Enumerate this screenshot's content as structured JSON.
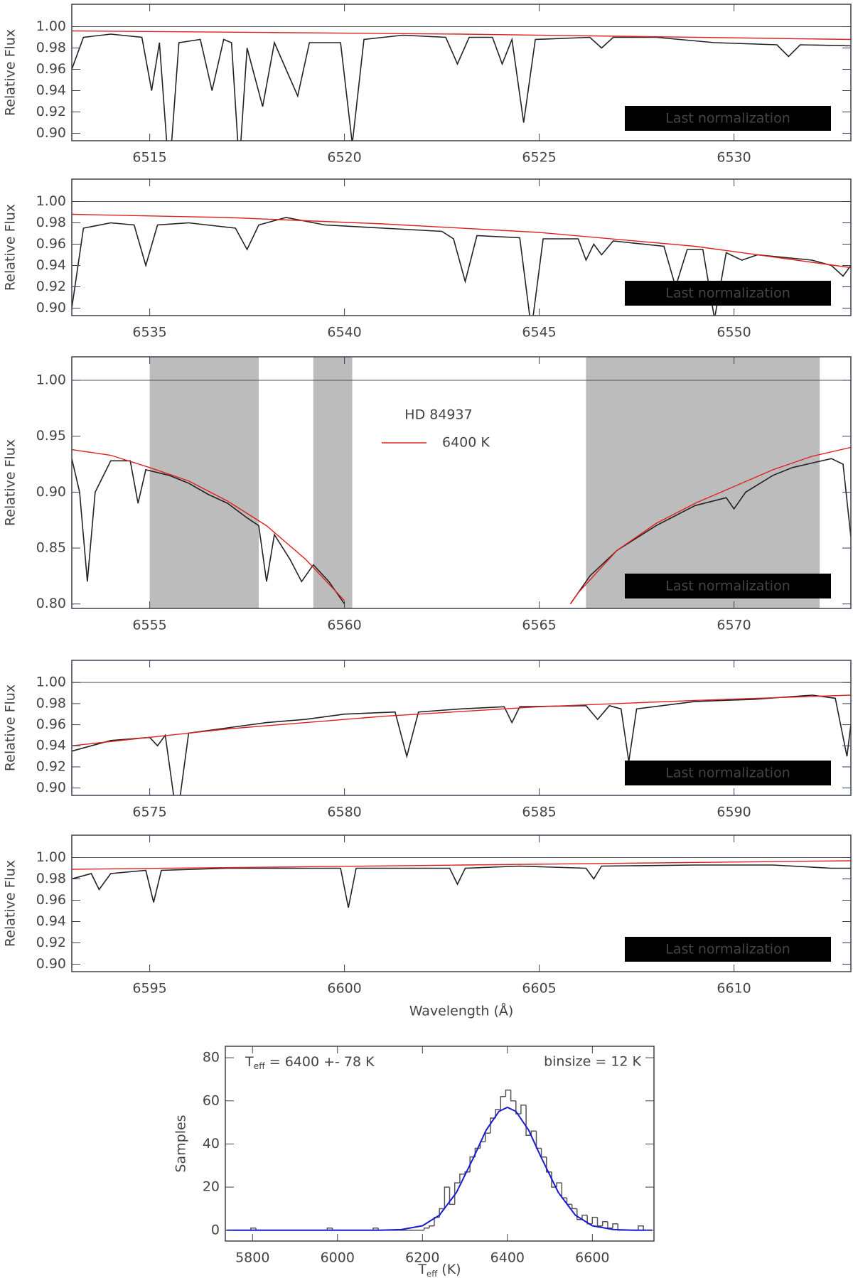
{
  "chart_data": [
    {
      "type": "line",
      "xlim": [
        6513,
        6533
      ],
      "ylim": [
        0.893,
        1.021
      ],
      "xticks": [
        6515,
        6520,
        6525,
        6530
      ],
      "yticks": [
        {
          "value": 0.9,
          "label": "0.90"
        },
        0.92,
        0.94,
        0.96,
        0.98,
        {
          "value": 1.0,
          "label": "1.00"
        }
      ],
      "ylabel": "Relative Flux",
      "hline": 1.0,
      "annotation": "Last normalization",
      "series": [
        {
          "color": "#222222",
          "x": [
            6513,
            6513.3,
            6514,
            6514.8,
            6515.05,
            6515.25,
            6515.5,
            6515.75,
            6516.3,
            6516.6,
            6516.9,
            6517.1,
            6517.3,
            6517.5,
            6517.9,
            6518.2,
            6518.8,
            6519.1,
            6519.9,
            6520.2,
            6520.5,
            6521.5,
            6522.6,
            6522.9,
            6523.2,
            6523.8,
            6524.05,
            6524.3,
            6524.6,
            6524.9,
            6526.3,
            6526.6,
            6526.9,
            6528,
            6529.5,
            6531.1,
            6531.4,
            6531.7,
            6533
          ],
          "values": [
            0.96,
            0.99,
            0.993,
            0.99,
            0.94,
            0.985,
            0.86,
            0.985,
            0.988,
            0.94,
            0.988,
            0.985,
            0.87,
            0.98,
            0.925,
            0.985,
            0.935,
            0.985,
            0.985,
            0.89,
            0.988,
            0.992,
            0.99,
            0.965,
            0.99,
            0.99,
            0.965,
            0.988,
            0.91,
            0.988,
            0.99,
            0.98,
            0.99,
            0.99,
            0.985,
            0.983,
            0.972,
            0.983,
            0.982
          ]
        },
        {
          "color": "#e02020",
          "x": [
            6513,
            6518,
            6523,
            6528,
            6533
          ],
          "values": [
            0.996,
            0.9945,
            0.993,
            0.9905,
            0.988
          ]
        }
      ]
    },
    {
      "type": "line",
      "xlim": [
        6533,
        6553
      ],
      "ylim": [
        0.893,
        1.021
      ],
      "xticks": [
        6535,
        6540,
        6545,
        6550
      ],
      "yticks": [
        {
          "value": 0.9,
          "label": "0.90"
        },
        0.92,
        0.94,
        0.96,
        0.98,
        {
          "value": 1.0,
          "label": "1.00"
        }
      ],
      "ylabel": "Relative Flux",
      "hline": 1.0,
      "annotation": "Last normalization",
      "series": [
        {
          "color": "#222222",
          "x": [
            6533,
            6533.3,
            6534,
            6534.6,
            6534.9,
            6535.2,
            6536,
            6537.2,
            6537.5,
            6537.8,
            6538.5,
            6539.5,
            6541,
            6542.5,
            6542.8,
            6543.1,
            6543.4,
            6544.5,
            6544.8,
            6545.1,
            6546,
            6546.2,
            6546.4,
            6546.6,
            6546.9,
            6548.2,
            6548.5,
            6548.8,
            6549.2,
            6549.5,
            6549.8,
            6550.2,
            6550.6,
            6552,
            6552.5,
            6552.8,
            6553
          ],
          "values": [
            0.9,
            0.975,
            0.98,
            0.978,
            0.94,
            0.978,
            0.98,
            0.975,
            0.955,
            0.978,
            0.985,
            0.978,
            0.975,
            0.972,
            0.965,
            0.925,
            0.968,
            0.966,
            0.88,
            0.965,
            0.965,
            0.945,
            0.96,
            0.95,
            0.963,
            0.958,
            0.92,
            0.955,
            0.955,
            0.89,
            0.952,
            0.945,
            0.95,
            0.945,
            0.94,
            0.93,
            0.94
          ]
        },
        {
          "color": "#e02020",
          "x": [
            6533,
            6537,
            6541,
            6545,
            6549,
            6553
          ],
          "values": [
            0.988,
            0.985,
            0.979,
            0.971,
            0.958,
            0.938
          ]
        }
      ]
    },
    {
      "type": "line",
      "xlim": [
        6553,
        6573
      ],
      "ylim": [
        0.796,
        1.021
      ],
      "xticks": [
        6555,
        6560,
        6565,
        6570
      ],
      "yticks": [
        {
          "value": 0.8,
          "label": "0.80"
        },
        0.85,
        {
          "value": 0.9,
          "label": "0.90"
        },
        0.95,
        {
          "value": 1.0,
          "label": "1.00"
        }
      ],
      "ylabel": "Relative Flux",
      "hline": 1.0,
      "annotation": "Last normalization",
      "title": "HD 84937",
      "shaded_regions": [
        [
          6555,
          6557.8
        ],
        [
          6559.2,
          6560.2
        ],
        [
          6566.2,
          6572.2
        ]
      ],
      "series": [
        {
          "color": "#222222",
          "x": [
            6553,
            6553.2,
            6553.4,
            6553.6,
            6554,
            6554.5,
            6554.7,
            6554.9,
            6555.5,
            6556,
            6556.5,
            6557,
            6557.5,
            6557.8,
            6558,
            6558.2,
            6558.6,
            6558.9,
            6559.2,
            6559.6,
            6560,
            6563,
            6565.8,
            6566.3,
            6567,
            6568,
            6569,
            6569.8,
            6570,
            6570.3,
            6571,
            6571.5,
            6572,
            6572.5,
            6572.8,
            6573
          ],
          "values": [
            0.93,
            0.9,
            0.82,
            0.9,
            0.928,
            0.928,
            0.89,
            0.92,
            0.915,
            0.908,
            0.898,
            0.89,
            0.877,
            0.87,
            0.82,
            0.862,
            0.84,
            0.82,
            0.835,
            0.82,
            0.8,
            null,
            0.8,
            0.825,
            0.848,
            0.87,
            0.888,
            0.895,
            0.885,
            0.9,
            0.915,
            0.922,
            0.926,
            0.93,
            0.925,
            0.86
          ]
        },
        {
          "name": "6400 K",
          "color": "#e02020",
          "x": [
            6553,
            6554,
            6555,
            6556,
            6557,
            6558,
            6559,
            6560,
            6563,
            6565.8,
            6566,
            6567,
            6568,
            6569,
            6570,
            6571,
            6572,
            6573
          ],
          "values": [
            0.938,
            0.933,
            0.922,
            0.91,
            0.892,
            0.87,
            0.84,
            0.803,
            null,
            0.8,
            0.81,
            0.848,
            0.872,
            0.89,
            0.905,
            0.92,
            0.932,
            0.94
          ]
        }
      ]
    },
    {
      "type": "line",
      "xlim": [
        6573,
        6593
      ],
      "ylim": [
        0.893,
        1.021
      ],
      "xticks": [
        6575,
        6580,
        6585,
        6590
      ],
      "yticks": [
        {
          "value": 0.9,
          "label": "0.90"
        },
        0.92,
        0.94,
        0.96,
        0.98,
        {
          "value": 1.0,
          "label": "1.00"
        }
      ],
      "ylabel": "Relative Flux",
      "hline": 1.0,
      "annotation": "Last normalization",
      "series": [
        {
          "color": "#222222",
          "x": [
            6573,
            6574,
            6575,
            6575.2,
            6575.4,
            6575.7,
            6576,
            6577,
            6578,
            6579,
            6580,
            6581.3,
            6581.6,
            6581.9,
            6583,
            6584.1,
            6584.3,
            6584.5,
            6586.2,
            6586.5,
            6586.8,
            6587.1,
            6587.3,
            6587.5,
            6589,
            6590.5,
            6592,
            6592.6,
            6592.9,
            6593
          ],
          "values": [
            0.935,
            0.945,
            0.948,
            0.94,
            0.95,
            0.87,
            0.952,
            0.957,
            0.962,
            0.965,
            0.97,
            0.972,
            0.93,
            0.972,
            0.975,
            0.977,
            0.962,
            0.977,
            0.978,
            0.965,
            0.978,
            0.975,
            0.925,
            0.975,
            0.982,
            0.984,
            0.988,
            0.985,
            0.93,
            0.96
          ]
        },
        {
          "color": "#e02020",
          "x": [
            6573,
            6577,
            6581,
            6585,
            6589,
            6593
          ],
          "values": [
            0.94,
            0.956,
            0.968,
            0.977,
            0.983,
            0.988
          ]
        }
      ]
    },
    {
      "type": "line",
      "xlim": [
        6593,
        6613
      ],
      "ylim": [
        0.893,
        1.021
      ],
      "xticks": [
        6595,
        6600,
        6605,
        6610
      ],
      "yticks": [
        {
          "value": 0.9,
          "label": "0.90"
        },
        0.92,
        0.94,
        0.96,
        0.98,
        {
          "value": 1.0,
          "label": "1.00"
        }
      ],
      "ylabel": "Relative Flux",
      "xlabel": "Wavelength (Å)",
      "hline": 1.0,
      "annotation": "Last normalization",
      "series": [
        {
          "color": "#222222",
          "x": [
            6593,
            6593.5,
            6593.7,
            6594,
            6594.9,
            6595.1,
            6595.3,
            6597,
            6599.9,
            6600.1,
            6600.3,
            6602.7,
            6602.9,
            6603.1,
            6604.5,
            6606.2,
            6606.4,
            6606.6,
            6609,
            6611,
            6612.5,
            6613
          ],
          "values": [
            0.98,
            0.985,
            0.97,
            0.985,
            0.988,
            0.958,
            0.988,
            0.99,
            0.99,
            0.953,
            0.99,
            0.99,
            0.975,
            0.99,
            0.992,
            0.99,
            0.98,
            0.992,
            0.993,
            0.993,
            0.99,
            0.99
          ]
        },
        {
          "color": "#e02020",
          "x": [
            6593,
            6603,
            6613
          ],
          "values": [
            0.989,
            0.993,
            0.997
          ]
        }
      ]
    },
    {
      "type": "histogram",
      "xlim": [
        5736,
        6745
      ],
      "ylim": [
        -5,
        85.3
      ],
      "xticks": [
        5800,
        6000,
        6200,
        6400,
        6600
      ],
      "yticks": [
        0,
        20,
        40,
        60,
        80
      ],
      "ylabel": "Samples",
      "xlabel": {
        "main": "T",
        "sub": "eff",
        "rest": "  (K)"
      },
      "color": "#555555",
      "bins": [
        5736,
        5748,
        5760,
        5772,
        5784,
        5796,
        5808,
        5820,
        5832,
        5844,
        5856,
        5868,
        5880,
        5892,
        5904,
        5916,
        5928,
        5940,
        5952,
        5964,
        5976,
        5988,
        6000,
        6012,
        6024,
        6036,
        6048,
        6060,
        6072,
        6084,
        6096,
        6108,
        6120,
        6132,
        6144,
        6156,
        6168,
        6180,
        6192,
        6204,
        6216,
        6228,
        6240,
        6252,
        6264,
        6276,
        6288,
        6300,
        6312,
        6324,
        6336,
        6348,
        6360,
        6372,
        6384,
        6396,
        6408,
        6420,
        6432,
        6444,
        6456,
        6468,
        6480,
        6492,
        6504,
        6516,
        6528,
        6540,
        6552,
        6564,
        6576,
        6588,
        6600,
        6612,
        6624,
        6636,
        6648,
        6660,
        6672,
        6684,
        6696,
        6708,
        6720
      ],
      "values": [
        0,
        0,
        0,
        0,
        0,
        1,
        0,
        0,
        0,
        0,
        0,
        0,
        0,
        0,
        0,
        0,
        0,
        0,
        0,
        0,
        1,
        0,
        0,
        0,
        0,
        0,
        0,
        0,
        0,
        1,
        0,
        0,
        0,
        0,
        0,
        0,
        0,
        0,
        0,
        1,
        2,
        6,
        10,
        20,
        12,
        22,
        26,
        27,
        34,
        38,
        41,
        45,
        52,
        56,
        62,
        65,
        60,
        54,
        58,
        44,
        46,
        38,
        34,
        27,
        20,
        22,
        15,
        12,
        10,
        5,
        7,
        3,
        6,
        2,
        4,
        1,
        3,
        0,
        0,
        0,
        0,
        2
      ],
      "fit": {
        "color": "#1a1ad0",
        "x": [
          5740,
          6100,
          6150,
          6200,
          6240,
          6280,
          6320,
          6350,
          6380,
          6400,
          6420,
          6450,
          6480,
          6520,
          6560,
          6600,
          6650,
          6700,
          6740
        ],
        "values": [
          0,
          0,
          0.3,
          2.1,
          7.0,
          17.5,
          33.6,
          46.4,
          55.1,
          57,
          55.1,
          46.4,
          33.6,
          17.5,
          7.0,
          2.1,
          0.3,
          0,
          0
        ]
      },
      "annotations": [
        {
          "main": "T",
          "sub": "eff",
          "rest": " = 6400 +- 78 K",
          "color": "#6a6af0"
        },
        {
          "text": "binsize = 12 K",
          "color": "#555555"
        }
      ]
    }
  ]
}
